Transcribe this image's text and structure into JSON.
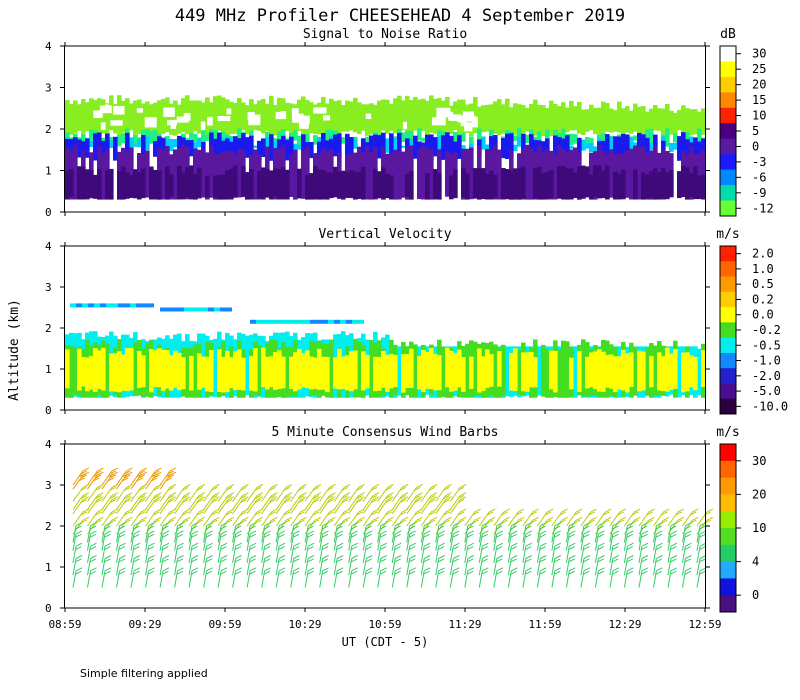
{
  "page_title": "449 MHz Profiler CHEESEHEAD  4 September 2019",
  "footer_note": "Simple filtering applied",
  "shared_ylabel": "Altitude (km)",
  "xaxis_title": "UT  (CDT - 5)",
  "chart_data": [
    {
      "type": "heatmap",
      "title": "Signal to Noise Ratio",
      "unit_label": "dB",
      "ylim": [
        0,
        4
      ],
      "yticks": [
        "0",
        "1",
        "2",
        "3",
        "4"
      ],
      "xticks": [
        "08:59",
        "09:29",
        "09:59",
        "10:29",
        "10:59",
        "11:29",
        "11:59",
        "12:29",
        "12:59"
      ],
      "colorbar_ticks": [
        "30",
        "25",
        "20",
        "15",
        "10",
        "5",
        "0",
        "-3",
        "-6",
        "-9",
        "-12"
      ],
      "colorbar_colors": [
        "#ffffff",
        "#ffff00",
        "#ffcc00",
        "#ff8800",
        "#ff2200",
        "#4b0082",
        "#5a1aa0",
        "#1a1aff",
        "#0088ff",
        "#00ddaa",
        "#66ff33"
      ],
      "data_bands": [
        {
          "value": "-12",
          "altitude_range_km": [
            1.9,
            2.7
          ],
          "color": "#88ee22"
        },
        {
          "value": "-9",
          "altitude_range_km": [
            1.65,
            1.9
          ],
          "color": "#22ee88"
        },
        {
          "value": "-6",
          "altitude_range_km": [
            1.5,
            1.7
          ],
          "color": "#00ccff"
        },
        {
          "value": "-3",
          "altitude_range_km": [
            1.3,
            1.8
          ],
          "color": "#1a1aee"
        },
        {
          "value": "0",
          "altitude_range_km": [
            0.3,
            1.5
          ],
          "color": "#5a18a0"
        },
        {
          "value": "5",
          "altitude_range_km": [
            0.3,
            1.0
          ],
          "color": "#3e0a7a"
        }
      ]
    },
    {
      "type": "heatmap",
      "title": "Vertical Velocity",
      "unit_label": "m/s",
      "ylim": [
        0,
        4
      ],
      "yticks": [
        "0",
        "1",
        "2",
        "3",
        "4"
      ],
      "xticks": [
        "08:59",
        "09:29",
        "09:59",
        "10:29",
        "10:59",
        "11:29",
        "11:59",
        "12:29",
        "12:59"
      ],
      "colorbar_ticks": [
        "2.0",
        "1.0",
        "0.5",
        "0.2",
        "0.0",
        "-0.2",
        "-0.5",
        "-1.0",
        "-2.0",
        "-5.0",
        "-10.0"
      ],
      "colorbar_colors": [
        "#ff2200",
        "#ff6600",
        "#ff9900",
        "#ffcc00",
        "#ffff00",
        "#44dd22",
        "#00eeee",
        "#1188ff",
        "#2222cc",
        "#4a0f90",
        "#2a0040"
      ],
      "data_bands": [
        {
          "value": "-0.5",
          "altitude_range_km": [
            0.3,
            1.8
          ],
          "color": "#00eeee"
        },
        {
          "value": "-0.2",
          "altitude_range_km": [
            0.3,
            1.6
          ],
          "color": "#44dd22"
        },
        {
          "value": "0.0",
          "altitude_range_km": [
            0.5,
            1.4
          ],
          "color": "#ffff00"
        }
      ]
    },
    {
      "type": "scatter",
      "title": "5 Minute Consensus Wind Barbs",
      "unit_label": "m/s",
      "ylim": [
        0,
        4
      ],
      "yticks": [
        "0",
        "1",
        "2",
        "3",
        "4"
      ],
      "xticks": [
        "08:59",
        "09:29",
        "09:59",
        "10:29",
        "10:59",
        "11:29",
        "11:59",
        "12:29",
        "12:59"
      ],
      "colorbar_ticks": [
        "30",
        "20",
        "10",
        "4",
        "0"
      ],
      "colorbar_colors": [
        "#ff0000",
        "#ff6600",
        "#ff9900",
        "#ffbb00",
        "#99ee00",
        "#55dd22",
        "#22cc66",
        "#22aaff",
        "#1111dd",
        "#4a0f80"
      ],
      "barb_groups": [
        {
          "altitudes_km": [
            2.9,
            3.0
          ],
          "speed_mps": 20,
          "color": "#ee9900"
        },
        {
          "altitudes_km": [
            1.8,
            2.0,
            2.3,
            2.4,
            2.6
          ],
          "speed_mps": 14,
          "color": "#bbcc00"
        },
        {
          "altitudes_km": [
            0.5,
            0.8,
            1.1,
            1.4,
            1.6
          ],
          "speed_mps": 9,
          "color": "#33cc66"
        }
      ]
    }
  ]
}
